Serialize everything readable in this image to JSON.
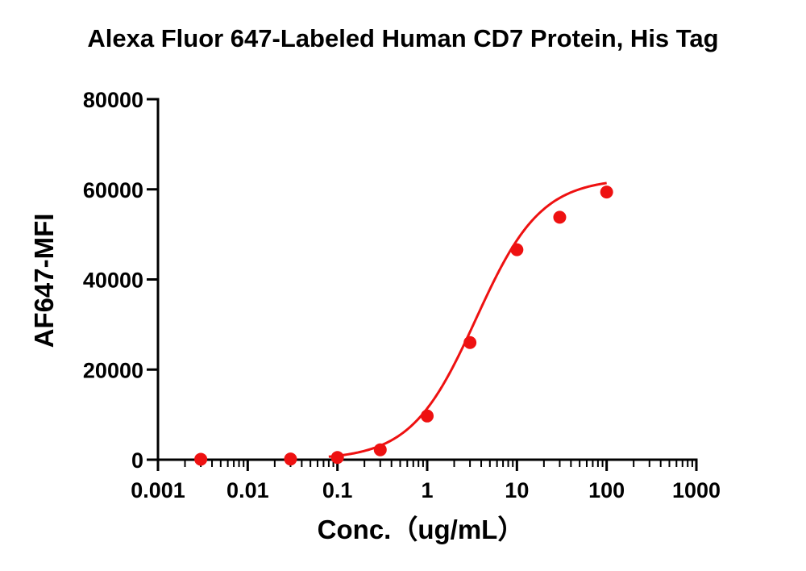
{
  "chart_data": {
    "type": "scatter",
    "title": "Alexa Fluor 647-Labeled Human CD7 Protein, His Tag",
    "xlabel": "Conc.（ug/mL）",
    "ylabel": "AF647-MFI",
    "x_scale": "log",
    "xlim": [
      0.001,
      1000
    ],
    "ylim": [
      0,
      80000
    ],
    "x_ticks": [
      0.001,
      0.01,
      0.1,
      1,
      10,
      100,
      1000
    ],
    "x_tick_labels": [
      "0.001",
      "0.01",
      "0.1",
      "1",
      "10",
      "100",
      "1000"
    ],
    "y_ticks": [
      0,
      20000,
      40000,
      60000,
      80000
    ],
    "y_tick_labels": [
      "0",
      "20000",
      "40000",
      "60000",
      "80000"
    ],
    "grid": false,
    "legend": "none",
    "series": [
      {
        "points": [
          {
            "x": 0.003,
            "y": 100
          },
          {
            "x": 0.03,
            "y": 150
          },
          {
            "x": 0.1,
            "y": 500
          },
          {
            "x": 0.3,
            "y": 2200
          },
          {
            "x": 1,
            "y": 9700
          },
          {
            "x": 3,
            "y": 26000
          },
          {
            "x": 10,
            "y": 46600
          },
          {
            "x": 30,
            "y": 53800
          },
          {
            "x": 100,
            "y": 59400
          }
        ],
        "color": "#ee1111",
        "fit": "four-parameter logistic"
      }
    ]
  }
}
